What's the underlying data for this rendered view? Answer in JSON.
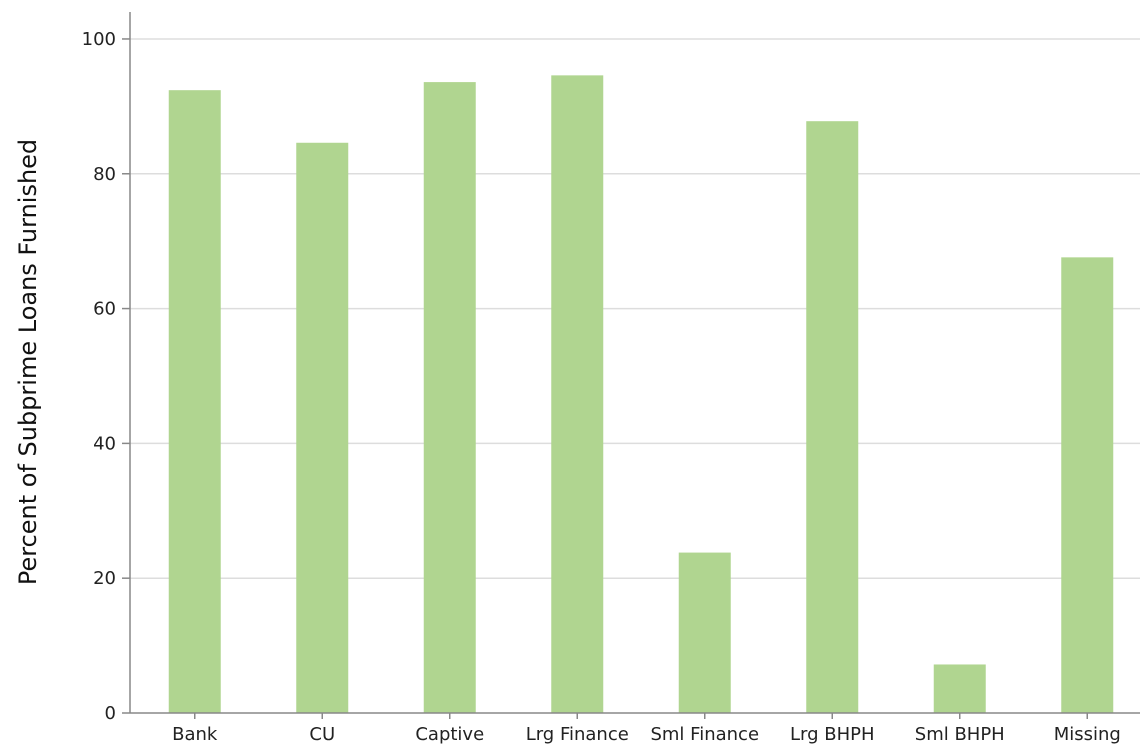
{
  "chart_data": {
    "type": "bar",
    "title": "",
    "xlabel": "",
    "ylabel": "Percent of Subprime Loans Furnished",
    "categories": [
      "Bank",
      "CU",
      "Captive",
      "Lrg Finance",
      "Sml Finance",
      "Lrg BHPH",
      "Sml BHPH",
      "Missing"
    ],
    "values": [
      92.4,
      84.6,
      93.6,
      94.6,
      23.8,
      87.8,
      7.2,
      67.6
    ],
    "ylim": [
      0,
      104
    ],
    "yticks": [
      0,
      20,
      40,
      60,
      80,
      100
    ],
    "grid": "horizontal",
    "legend": "none",
    "colors": {
      "bar": "#b0d590",
      "grid": "#dddddd",
      "axis": "#888888",
      "text": "#222222"
    }
  }
}
